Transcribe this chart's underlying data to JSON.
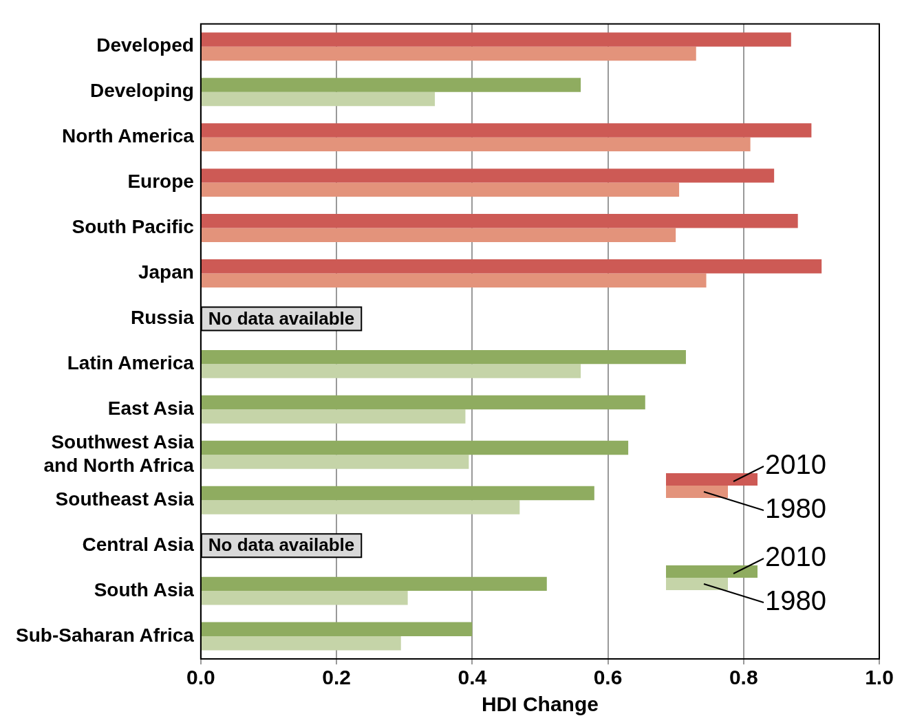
{
  "chart_data": {
    "type": "bar",
    "orientation": "horizontal",
    "xlabel": "HDI Change",
    "categories": [
      "Developed",
      "Developing",
      "North America",
      "Europe",
      "South Pacific",
      "Japan",
      "Russia",
      "Latin America",
      "East Asia",
      "Southwest Asia and North Africa",
      "Southeast Asia",
      "Central Asia",
      "South Asia",
      "Sub-Saharan Africa"
    ],
    "series": [
      {
        "name": "2010",
        "color": "#cd5a55",
        "values": [
          0.87,
          null,
          0.9,
          0.845,
          0.88,
          0.915,
          null,
          null,
          null,
          null,
          null,
          null,
          null,
          null
        ]
      },
      {
        "name": "1980",
        "color": "#e3937b",
        "values": [
          0.73,
          null,
          0.81,
          0.705,
          0.7,
          0.745,
          null,
          null,
          null,
          null,
          null,
          null,
          null,
          null
        ]
      },
      {
        "name": "2010",
        "color": "#8fac60",
        "values": [
          null,
          0.56,
          null,
          null,
          null,
          null,
          null,
          0.715,
          0.655,
          0.63,
          0.58,
          null,
          0.51,
          0.4
        ]
      },
      {
        "name": "1980",
        "color": "#c5d4a8",
        "values": [
          null,
          0.345,
          null,
          null,
          null,
          null,
          null,
          0.56,
          0.39,
          0.395,
          0.47,
          null,
          0.305,
          0.295
        ]
      }
    ],
    "xlim": [
      0,
      1
    ],
    "xticks": [
      {
        "value": 0,
        "label": "0.0"
      },
      {
        "value": 0.2,
        "label": "0.2"
      },
      {
        "value": 0.4,
        "label": "0.4"
      },
      {
        "value": 0.6,
        "label": "0.6"
      },
      {
        "value": 0.8,
        "label": "0.8"
      },
      {
        "value": 1,
        "label": "1.0"
      }
    ],
    "grid": "x",
    "legend": "bottom right",
    "annotations": [
      "No data available",
      "No data available"
    ]
  }
}
